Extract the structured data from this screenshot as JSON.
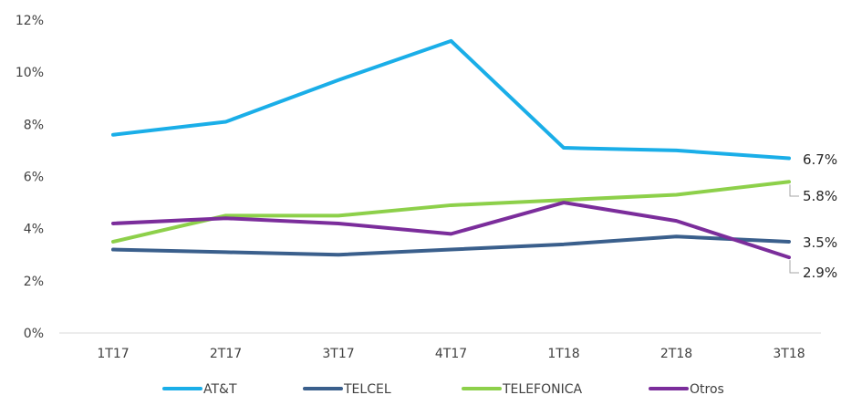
{
  "chart_data": {
    "type": "line",
    "categories": [
      "1T17",
      "2T17",
      "3T17",
      "4T17",
      "1T18",
      "2T18",
      "3T18"
    ],
    "y_ticks": [
      "0%",
      "2%",
      "4%",
      "6%",
      "8%",
      "10%",
      "12%"
    ],
    "ylim": [
      0,
      12
    ],
    "y_unit": "%",
    "grid": false,
    "legend_position": "bottom",
    "series": [
      {
        "name": "AT&T",
        "color": "#1aaee8",
        "values": [
          7.6,
          8.1,
          9.7,
          11.2,
          7.1,
          7.0,
          6.7
        ],
        "end_label": "6.7%"
      },
      {
        "name": "TELCEL",
        "color": "#3a5f8c",
        "values": [
          3.2,
          3.1,
          3.0,
          3.2,
          3.4,
          3.7,
          3.5
        ],
        "end_label": "3.5%"
      },
      {
        "name": "TELEFONICA",
        "color": "#8dd04a",
        "values": [
          3.5,
          4.5,
          4.5,
          4.9,
          5.1,
          5.3,
          5.8
        ],
        "end_label": "5.8%"
      },
      {
        "name": "Otros",
        "color": "#7b2d9b",
        "values": [
          4.2,
          4.4,
          4.2,
          3.8,
          5.0,
          4.3,
          2.9
        ],
        "end_label": "2.9%"
      }
    ]
  }
}
